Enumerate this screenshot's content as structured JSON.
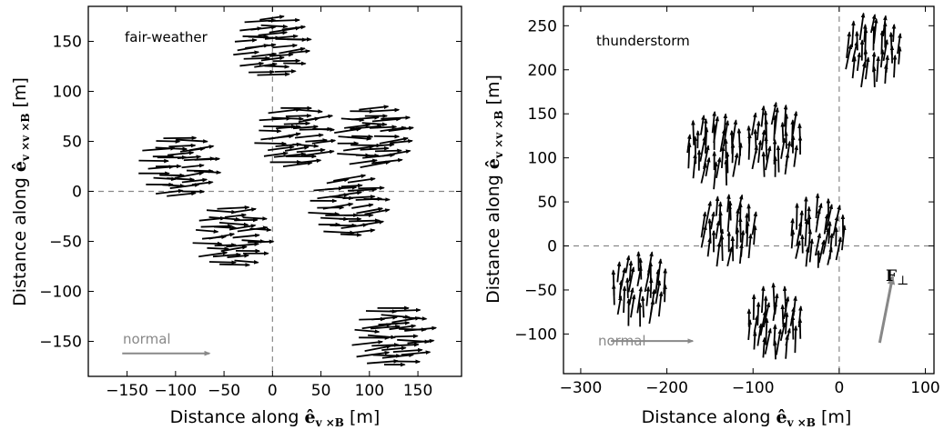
{
  "chart_data": [
    {
      "type": "scatter",
      "panel_label": "fair-weather",
      "xlabel_prefix": "Distance along ",
      "xlabel_vec": "ê",
      "xlabel_sub": "v ×B",
      "xlabel_unit": " [m]",
      "ylabel_prefix": "Distance along ",
      "ylabel_vec": "ê",
      "ylabel_sub": "v ×v ×B",
      "ylabel_unit": " [m]",
      "xlim": [
        -190,
        195
      ],
      "ylim": [
        -185,
        185
      ],
      "xticks": [
        -150,
        -100,
        -50,
        0,
        50,
        100,
        150
      ],
      "yticks": [
        -150,
        -100,
        -50,
        0,
        50,
        100,
        150
      ],
      "xtick_labels": [
        "−150",
        "−100",
        "−50",
        "0",
        "50",
        "100",
        "150"
      ],
      "ytick_labels": [
        "−150",
        "−100",
        "−50",
        "0",
        "50",
        "100",
        "150"
      ],
      "reference_lines": {
        "x": 0,
        "y": 0,
        "style": "dashed"
      },
      "arrow_direction_deg": 3,
      "arrow_spread_deg": 8,
      "arrow_length": 30,
      "clusters": [
        {
          "x": 0,
          "y": 145,
          "r": 28
        },
        {
          "x": 125,
          "y": -145,
          "r": 28
        },
        {
          "x": -95,
          "y": 25,
          "r": 28
        },
        {
          "x": 25,
          "y": 55,
          "r": 28
        },
        {
          "x": 105,
          "y": 55,
          "r": 28
        },
        {
          "x": -40,
          "y": -45,
          "r": 28
        },
        {
          "x": 80,
          "y": -15,
          "r": 28
        }
      ],
      "normal_label": "normal",
      "normal_arrow": {
        "x_start": -155,
        "x_end": -65,
        "y": -162
      },
      "colors": {
        "arrows": "#000000",
        "normal": "#888888",
        "reference": "#888888"
      }
    },
    {
      "type": "scatter",
      "panel_label": "thunderstorm",
      "xlabel_prefix": "Distance along ",
      "xlabel_vec": "ê",
      "xlabel_sub": "v ×B",
      "xlabel_unit": " [m]",
      "ylabel_prefix": "Distance along ",
      "ylabel_vec": "ê",
      "ylabel_sub": "v ×v ×B",
      "ylabel_unit": " [m]",
      "xlim": [
        -320,
        110
      ],
      "ylim": [
        -145,
        272
      ],
      "xticks": [
        -300,
        -200,
        -100,
        0,
        100
      ],
      "yticks": [
        -100,
        -50,
        0,
        50,
        100,
        150,
        200,
        250
      ],
      "xtick_labels": [
        "−300",
        "−200",
        "−100",
        "0",
        "100"
      ],
      "ytick_labels": [
        "−100",
        "−50",
        "0",
        "50",
        "100",
        "150",
        "200",
        "250"
      ],
      "reference_lines": {
        "x": 0,
        "y": 0,
        "style": "dashed"
      },
      "arrow_direction_deg": 85,
      "arrow_spread_deg": 8,
      "arrow_length": 25,
      "clusters": [
        {
          "x": 40,
          "y": 222,
          "r": 30
        },
        {
          "x": -145,
          "y": 110,
          "r": 30
        },
        {
          "x": -75,
          "y": 120,
          "r": 30
        },
        {
          "x": -128,
          "y": 18,
          "r": 30
        },
        {
          "x": -25,
          "y": 15,
          "r": 30
        },
        {
          "x": -232,
          "y": -48,
          "r": 30
        },
        {
          "x": -75,
          "y": -88,
          "r": 30
        }
      ],
      "normal_label": "normal",
      "normal_arrow": {
        "x_start": -265,
        "x_end": -170,
        "y": -108
      },
      "force_label": "F",
      "force_sub": "⊥",
      "force_arrow": {
        "x_start": 47,
        "y_start": -110,
        "x_end": 62,
        "y_end": -35
      },
      "colors": {
        "arrows": "#000000",
        "normal": "#888888",
        "force": "#888888",
        "reference": "#888888"
      }
    }
  ]
}
